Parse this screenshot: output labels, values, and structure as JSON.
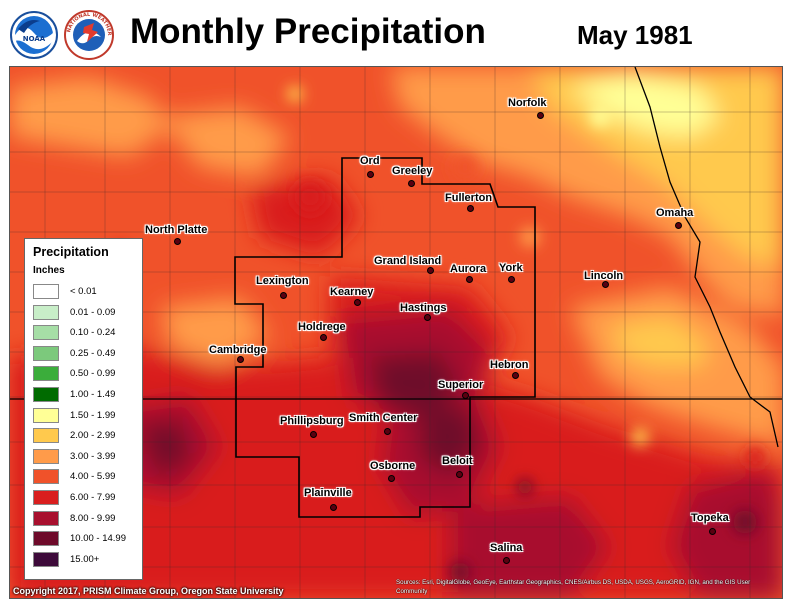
{
  "header": {
    "title": "Monthly Precipitation",
    "period": "May 1981",
    "logos": [
      "noaa-logo",
      "national-weather-service-logo"
    ],
    "nws_ring_text": "NATIONAL WEATHER SERVICE"
  },
  "legend": {
    "title": "Precipitation",
    "units": "Inches",
    "classes": [
      {
        "label": "< 0.01",
        "color": "#ffffff"
      },
      {
        "label": "0.01 - 0.09",
        "color": "#c8eec8"
      },
      {
        "label": "0.10 - 0.24",
        "color": "#a6dea6"
      },
      {
        "label": "0.25 - 0.49",
        "color": "#7cc97c"
      },
      {
        "label": "0.50 - 0.99",
        "color": "#3bad3b"
      },
      {
        "label": "1.00 - 1.49",
        "color": "#006b00"
      },
      {
        "label": "1.50 - 1.99",
        "color": "#ffff96"
      },
      {
        "label": "2.00 - 2.99",
        "color": "#ffc94d"
      },
      {
        "label": "3.00 - 3.99",
        "color": "#ff9b4a"
      },
      {
        "label": "4.00 - 5.99",
        "color": "#f0522a"
      },
      {
        "label": "6.00 - 7.99",
        "color": "#d91e1e"
      },
      {
        "label": "8.00 - 9.99",
        "color": "#a8102e"
      },
      {
        "label": "10.00 - 14.99",
        "color": "#6e0a2a"
      },
      {
        "label": "15.00+",
        "color": "#3d0a3a"
      }
    ]
  },
  "cities": [
    {
      "name": "Ord"
    },
    {
      "name": "Greeley"
    },
    {
      "name": "Norfolk"
    },
    {
      "name": "Fullerton"
    },
    {
      "name": "North Platte"
    },
    {
      "name": "Omaha"
    },
    {
      "name": "Grand Island"
    },
    {
      "name": "Aurora"
    },
    {
      "name": "York"
    },
    {
      "name": "Lexington"
    },
    {
      "name": "Kearney"
    },
    {
      "name": "Lincoln"
    },
    {
      "name": "Hastings"
    },
    {
      "name": "Holdrege"
    },
    {
      "name": "Cambridge"
    },
    {
      "name": "Hebron"
    },
    {
      "name": "Superior"
    },
    {
      "name": "Phillipsburg"
    },
    {
      "name": "Smith Center"
    },
    {
      "name": "Beloit"
    },
    {
      "name": "Osborne"
    },
    {
      "name": "Plainville"
    },
    {
      "name": "Topeka"
    },
    {
      "name": "Salina"
    }
  ],
  "footer": {
    "copyright": "Copyright 2017, PRISM Climate Group, Oregon State University",
    "sources": "Sources: Esri, DigitalGlobe, GeoEye, Earthstar Geographics, CNES/Airbus DS, USDA, USGS, AeroGRID, IGN, and the GIS User Community"
  }
}
